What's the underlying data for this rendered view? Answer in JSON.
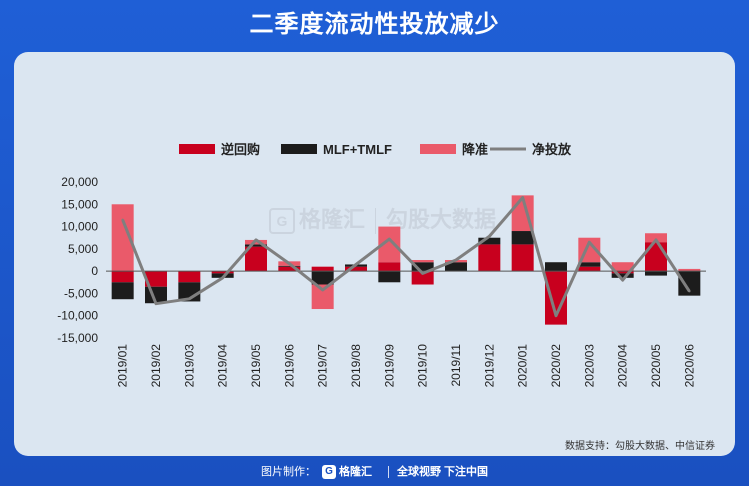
{
  "title": "二季度流动性投放减少",
  "source": "数据支持：勾股大数据、中信证券",
  "watermark": {
    "brand": "格隆汇",
    "text": "勾股大数据"
  },
  "footer": {
    "prefix": "图片制作：",
    "brand": "格隆汇",
    "slogan": "全球视野 下注中国"
  },
  "colors": {
    "reverse_repo": "#c8001e",
    "mlf_tmlf": "#1c1c1c",
    "rrr_cut": "#ea5a6a",
    "net": "#7f7f7f",
    "panel": "#dbe6f1",
    "header": "#1d57c9"
  },
  "chart_data": {
    "type": "bar",
    "title": "",
    "xlabel": "",
    "ylabel": "",
    "ylim": [
      -15000,
      20000
    ],
    "yticks": [
      20000,
      15000,
      10000,
      5000,
      0,
      -5000,
      -10000,
      -15000
    ],
    "ytick_labels": [
      "20,000",
      "15,000",
      "10,000",
      "5,000",
      "0",
      "-5,000",
      "-10,000",
      "-15,000"
    ],
    "legend_position": "top",
    "categories": [
      "2019/01",
      "2019/02",
      "2019/03",
      "2019/04",
      "2019/05",
      "2019/06",
      "2019/07",
      "2019/08",
      "2019/09",
      "2019/10",
      "2019/11",
      "2019/12",
      "2020/01",
      "2020/02",
      "2020/03",
      "2020/04",
      "2020/05",
      "2020/06"
    ],
    "series": [
      {
        "name": "逆回购",
        "kind": "stacked-bar",
        "values": [
          -2500,
          -3500,
          -2500,
          -500,
          5500,
          1000,
          1000,
          1000,
          2000,
          -3000,
          0,
          6000,
          6000,
          -12000,
          1000,
          -500,
          6500,
          0
        ]
      },
      {
        "name": "MLF+TMLF",
        "kind": "stacked-bar",
        "values": [
          -3800,
          -3700,
          -4300,
          -1000,
          500,
          200,
          -3000,
          500,
          -2500,
          2000,
          2000,
          1500,
          3000,
          2000,
          1000,
          -1000,
          -1000,
          -5500
        ]
      },
      {
        "name": "降准",
        "kind": "stacked-bar",
        "values": [
          15000,
          0,
          0,
          0,
          1000,
          1000,
          -5500,
          0,
          8000,
          500,
          500,
          0,
          8000,
          0,
          5500,
          2000,
          2000,
          500
        ]
      },
      {
        "name": "净投放",
        "kind": "line",
        "values": [
          11500,
          -7300,
          -6200,
          -1500,
          7000,
          1700,
          -4200,
          1500,
          7200,
          -500,
          2500,
          7800,
          16500,
          -10000,
          6500,
          -2000,
          7000,
          -4500
        ]
      }
    ]
  }
}
